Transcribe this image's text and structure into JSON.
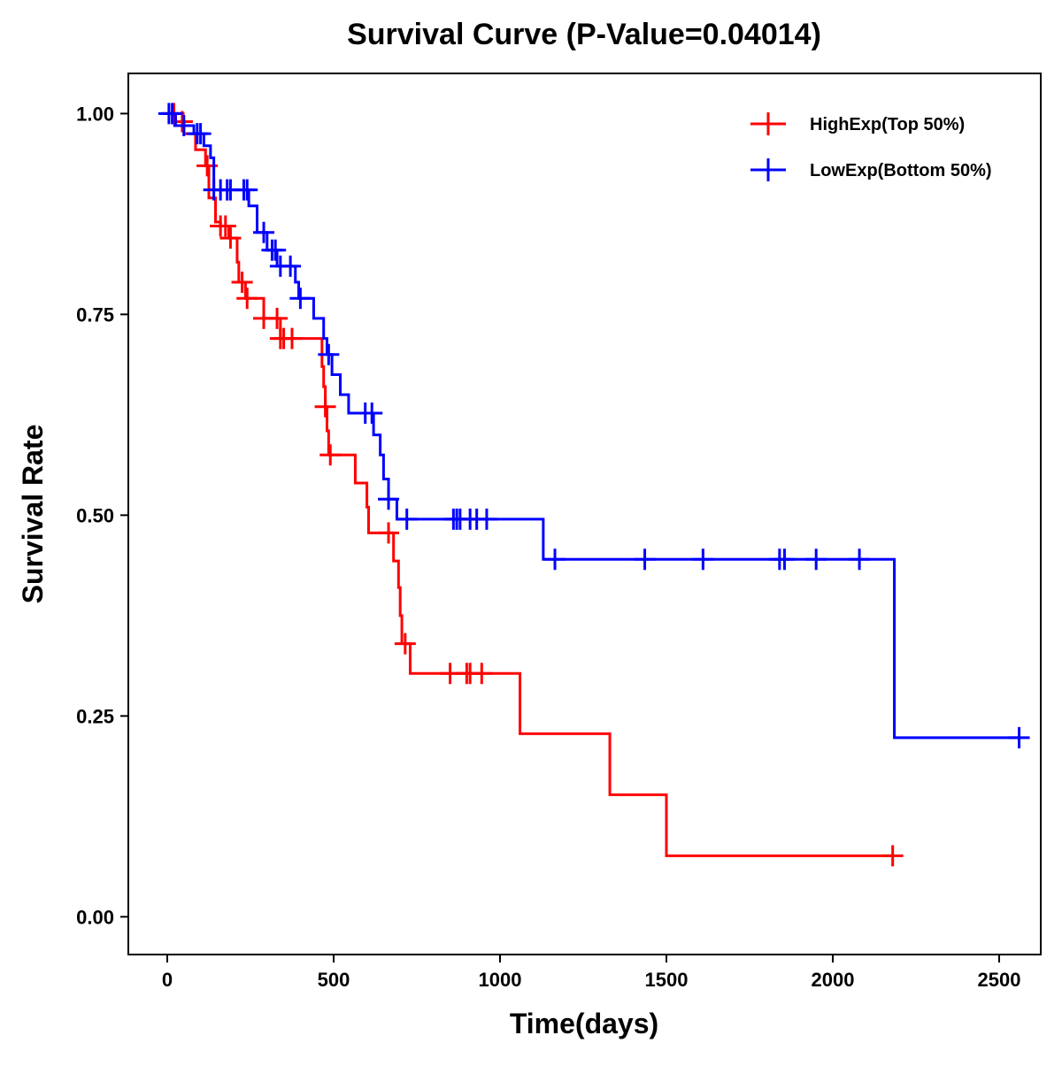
{
  "chart_data": {
    "type": "line",
    "subtype": "kaplan-meier",
    "title": "Survival Curve (P-Value=0.04014)",
    "xlabel": "Time(days)",
    "ylabel": "Survival Rate",
    "xlim": [
      -117,
      2625
    ],
    "ylim": [
      -0.047,
      1.05
    ],
    "xticks": [
      0,
      500,
      1000,
      1500,
      2000,
      2500
    ],
    "xtick_labels": [
      "0",
      "500",
      "1000",
      "1500",
      "2000",
      "2500"
    ],
    "yticks": [
      0,
      0.25,
      0.5,
      0.75,
      1.0
    ],
    "ytick_labels": [
      "0.00",
      "0.25",
      "0.50",
      "0.75",
      "1.00"
    ],
    "grid": false,
    "legend_position": "top-right",
    "series": [
      {
        "name": "HighExp(Top 50%)",
        "color": "#ff0000",
        "steps": [
          [
            0,
            1.0
          ],
          [
            25,
            0.99
          ],
          [
            50,
            0.975
          ],
          [
            85,
            0.955
          ],
          [
            115,
            0.935
          ],
          [
            125,
            0.895
          ],
          [
            145,
            0.865
          ],
          [
            160,
            0.86
          ],
          [
            185,
            0.845
          ],
          [
            210,
            0.815
          ],
          [
            215,
            0.79
          ],
          [
            235,
            0.77
          ],
          [
            265,
            0.77
          ],
          [
            290,
            0.745
          ],
          [
            340,
            0.72
          ],
          [
            460,
            0.72
          ],
          [
            465,
            0.685
          ],
          [
            470,
            0.66
          ],
          [
            475,
            0.635
          ],
          [
            480,
            0.605
          ],
          [
            485,
            0.575
          ],
          [
            565,
            0.54
          ],
          [
            600,
            0.51
          ],
          [
            605,
            0.478
          ],
          [
            680,
            0.443
          ],
          [
            695,
            0.41
          ],
          [
            700,
            0.375
          ],
          [
            705,
            0.34
          ],
          [
            730,
            0.303
          ],
          [
            1060,
            0.228
          ],
          [
            1330,
            0.152
          ],
          [
            1500,
            0.076
          ]
        ],
        "end_time": 2180,
        "censor_times": [
          20,
          45,
          120,
          160,
          175,
          190,
          225,
          240,
          290,
          330,
          340,
          350,
          375,
          475,
          490,
          665,
          715,
          850,
          900,
          910,
          945,
          2180
        ]
      },
      {
        "name": "LowExp(Bottom 50%)",
        "color": "#0000ff",
        "steps": [
          [
            0,
            1.0
          ],
          [
            25,
            0.985
          ],
          [
            80,
            0.975
          ],
          [
            110,
            0.96
          ],
          [
            130,
            0.945
          ],
          [
            140,
            0.905
          ],
          [
            245,
            0.885
          ],
          [
            270,
            0.852
          ],
          [
            300,
            0.83
          ],
          [
            330,
            0.81
          ],
          [
            385,
            0.79
          ],
          [
            395,
            0.77
          ],
          [
            440,
            0.745
          ],
          [
            470,
            0.72
          ],
          [
            480,
            0.7
          ],
          [
            495,
            0.675
          ],
          [
            520,
            0.65
          ],
          [
            545,
            0.627
          ],
          [
            620,
            0.6
          ],
          [
            640,
            0.575
          ],
          [
            650,
            0.545
          ],
          [
            665,
            0.52
          ],
          [
            690,
            0.495
          ],
          [
            1130,
            0.445
          ],
          [
            2185,
            0.223
          ]
        ],
        "end_time": 2560,
        "censor_times": [
          5,
          15,
          50,
          90,
          100,
          140,
          160,
          180,
          190,
          230,
          240,
          290,
          315,
          325,
          340,
          370,
          400,
          485,
          595,
          615,
          665,
          720,
          860,
          870,
          880,
          910,
          930,
          960,
          1165,
          1435,
          1610,
          1840,
          1855,
          1950,
          2080,
          2560
        ]
      }
    ]
  }
}
